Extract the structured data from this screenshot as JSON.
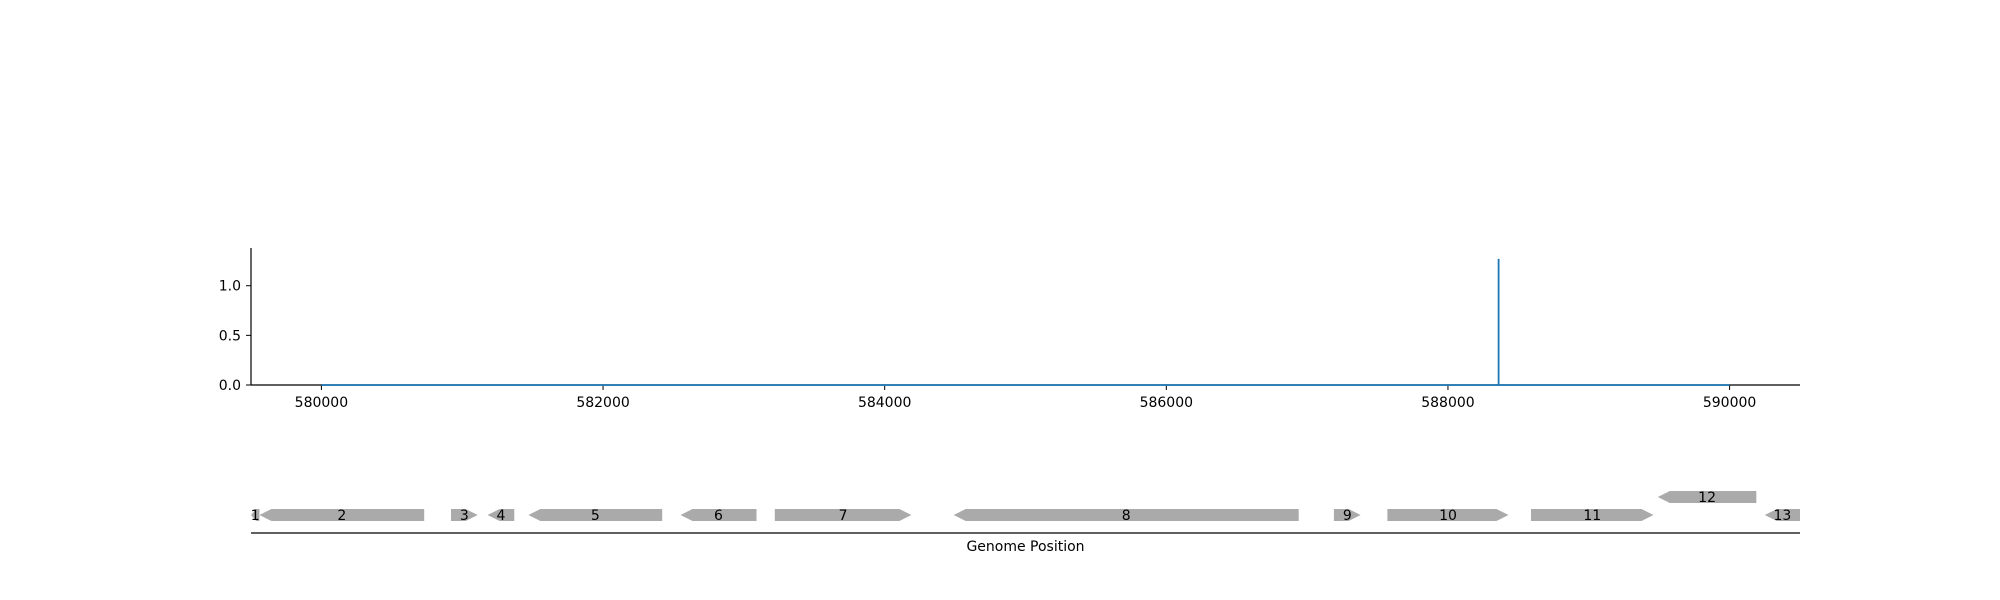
{
  "chart_data": [
    {
      "type": "line",
      "title": "",
      "xlabel": "",
      "ylabel": "",
      "xlim": [
        579500,
        590500
      ],
      "ylim": [
        0,
        1.38
      ],
      "x_ticks": [
        580000,
        582000,
        584000,
        586000,
        588000,
        590000
      ],
      "x_tick_labels": [
        "580000",
        "582000",
        "584000",
        "586000",
        "588000",
        "590000"
      ],
      "y_ticks": [
        0.0,
        0.5,
        1.0
      ],
      "y_tick_labels": [
        "0.0",
        "0.5",
        "1.0"
      ],
      "grid": false,
      "line_color": "#1f77b4",
      "series": [
        {
          "x_range": [
            580000,
            590000
          ],
          "baseline": 0,
          "peaks": [
            {
              "x": 588360,
              "y": 1.27
            }
          ]
        }
      ]
    },
    {
      "type": "gene-track",
      "xlabel": "Genome Position",
      "xlim": [
        579500,
        590500
      ],
      "feature_color": "#aaaaaa",
      "genes": [
        {
          "label": "1",
          "start": 579500,
          "end": 579560,
          "strand": -1,
          "row": 0
        },
        {
          "label": "2",
          "start": 579560,
          "end": 580730,
          "strand": -1,
          "row": 0
        },
        {
          "label": "3",
          "start": 580920,
          "end": 581110,
          "strand": 1,
          "row": 0
        },
        {
          "label": "4",
          "start": 581180,
          "end": 581370,
          "strand": -1,
          "row": 0
        },
        {
          "label": "5",
          "start": 581470,
          "end": 582420,
          "strand": -1,
          "row": 0
        },
        {
          "label": "6",
          "start": 582550,
          "end": 583090,
          "strand": -1,
          "row": 0
        },
        {
          "label": "7",
          "start": 583220,
          "end": 584190,
          "strand": 1,
          "row": 0
        },
        {
          "label": "8",
          "start": 584490,
          "end": 586940,
          "strand": -1,
          "row": 0
        },
        {
          "label": "9",
          "start": 587190,
          "end": 587380,
          "strand": 1,
          "row": 0
        },
        {
          "label": "10",
          "start": 587570,
          "end": 588430,
          "strand": 1,
          "row": 0
        },
        {
          "label": "11",
          "start": 588590,
          "end": 589460,
          "strand": 1,
          "row": 0
        },
        {
          "label": "12",
          "start": 589490,
          "end": 590190,
          "strand": -1,
          "row": 1
        },
        {
          "label": "13",
          "start": 590250,
          "end": 590500,
          "strand": -1,
          "row": 0
        }
      ]
    }
  ]
}
